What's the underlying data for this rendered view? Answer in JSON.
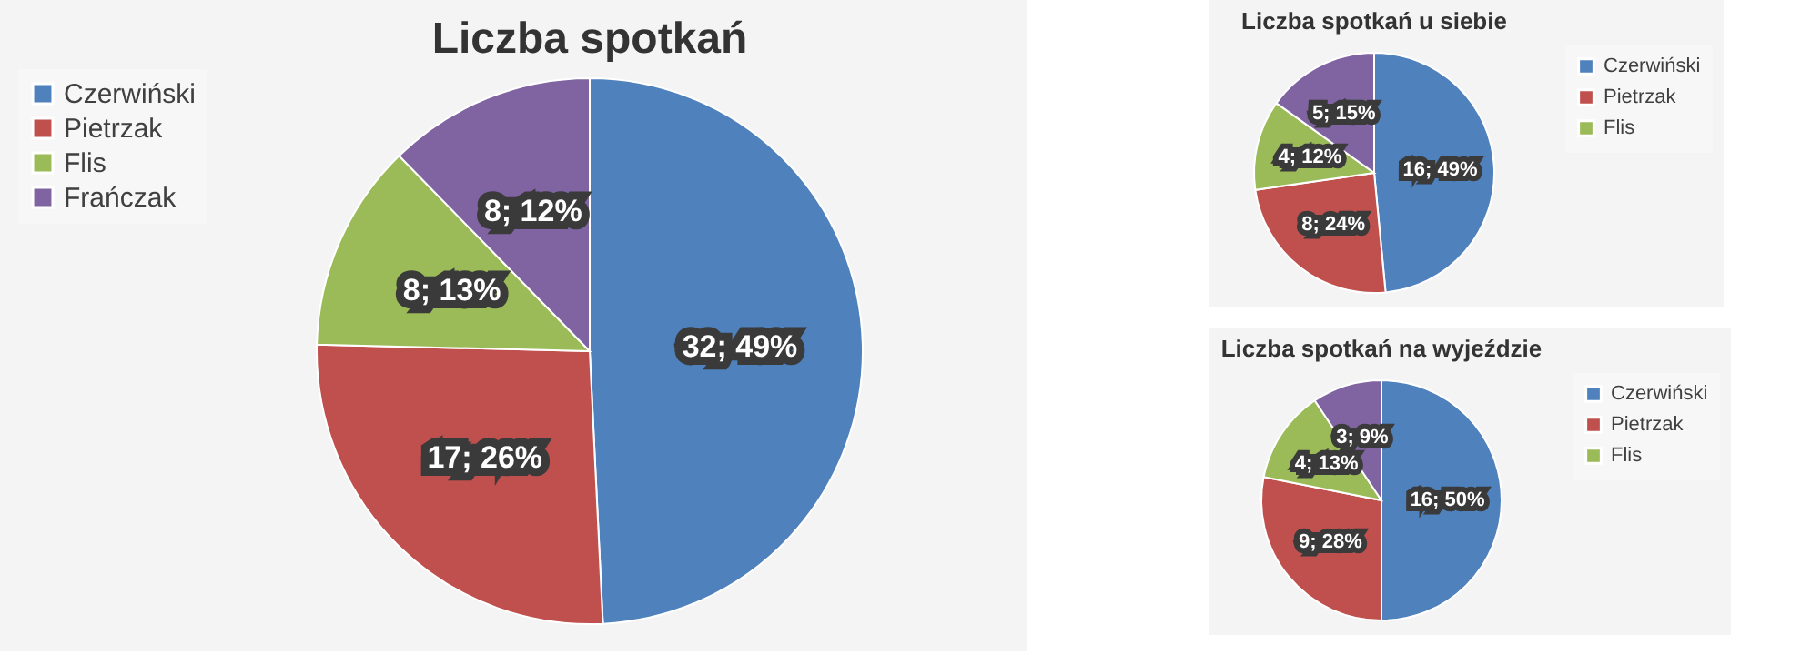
{
  "chart_data": [
    {
      "type": "pie",
      "title": "Liczba spotkań",
      "categories": [
        "Czerwiński",
        "Pietrzak",
        "Flis",
        "Frańczak"
      ],
      "values": [
        32,
        17,
        8,
        8
      ],
      "colors": [
        "#4f81bd",
        "#c0504d",
        "#9bbb59",
        "#8064a2"
      ],
      "value_labels": [
        "32; 49%",
        "17; 26%",
        "8; 13%",
        "8; 12%"
      ],
      "legend": "left"
    },
    {
      "type": "pie",
      "title": "Liczba spotkań u siebie",
      "categories": [
        "Czerwiński",
        "Pietrzak",
        "Flis",
        null
      ],
      "values": [
        16,
        8,
        4,
        5
      ],
      "colors": [
        "#4f81bd",
        "#c0504d",
        "#9bbb59",
        "#8064a2"
      ],
      "value_labels": [
        "16; 49%",
        "8; 24%",
        "4; 12%",
        "5; 15%"
      ],
      "legend": "right"
    },
    {
      "type": "pie",
      "title": "Liczba spotkań na wyjeździe",
      "categories": [
        "Czerwiński",
        "Pietrzak",
        "Flis",
        null
      ],
      "values": [
        16,
        9,
        4,
        3
      ],
      "colors": [
        "#4f81bd",
        "#c0504d",
        "#9bbb59",
        "#8064a2"
      ],
      "value_labels": [
        "16; 50%",
        "9; 28%",
        "4; 13%",
        "3; 9%"
      ],
      "legend": "right"
    }
  ]
}
